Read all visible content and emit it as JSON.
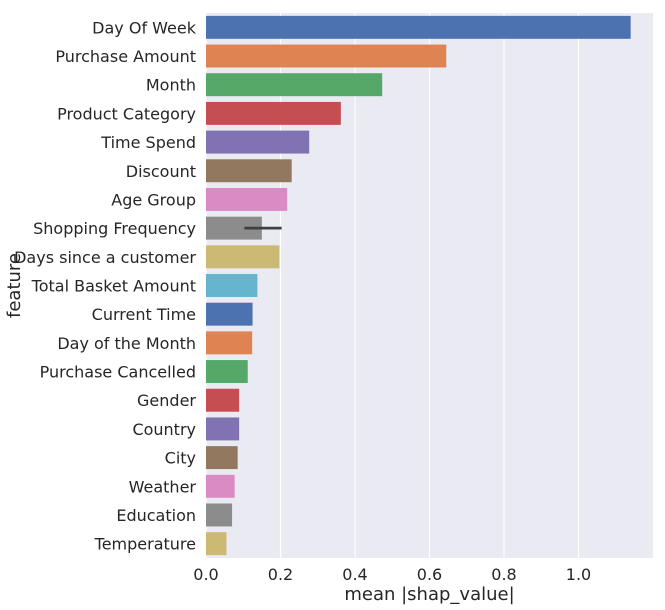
{
  "chart_data": {
    "type": "bar",
    "orientation": "horizontal",
    "xlabel": "mean |shap_value|",
    "ylabel": "feature",
    "xlim": [
      0,
      1.2
    ],
    "xticks": [
      "0.0",
      "0.2",
      "0.4",
      "0.6",
      "0.8",
      "1.0"
    ],
    "grid": true,
    "categories": [
      "Day Of Week",
      "Purchase Amount",
      "Month",
      "Product Category",
      "Time Spend",
      "Discount",
      "Age Group",
      "Shopping Frequency",
      "Days since a customer",
      "Total Basket Amount",
      "Current Time",
      "Day of the Month",
      "Purchase Cancelled",
      "Gender",
      "Country",
      "City",
      "Weather",
      "Education",
      "Temperature"
    ],
    "values": [
      1.14,
      0.645,
      0.473,
      0.362,
      0.277,
      0.23,
      0.218,
      0.15,
      0.197,
      0.138,
      0.125,
      0.124,
      0.112,
      0.089,
      0.089,
      0.085,
      0.077,
      0.07,
      0.055
    ],
    "error_bars": [
      null,
      null,
      null,
      null,
      null,
      null,
      null,
      [
        0.103,
        0.203
      ],
      null,
      null,
      null,
      null,
      null,
      null,
      null,
      null,
      null,
      null,
      null
    ],
    "colors": [
      "#4c72b0",
      "#dd8452",
      "#55a868",
      "#c44e52",
      "#8172b3",
      "#937860",
      "#da8bc3",
      "#8c8c8c",
      "#ccb974",
      "#64b5cd"
    ],
    "background": "#eaeaf2"
  }
}
